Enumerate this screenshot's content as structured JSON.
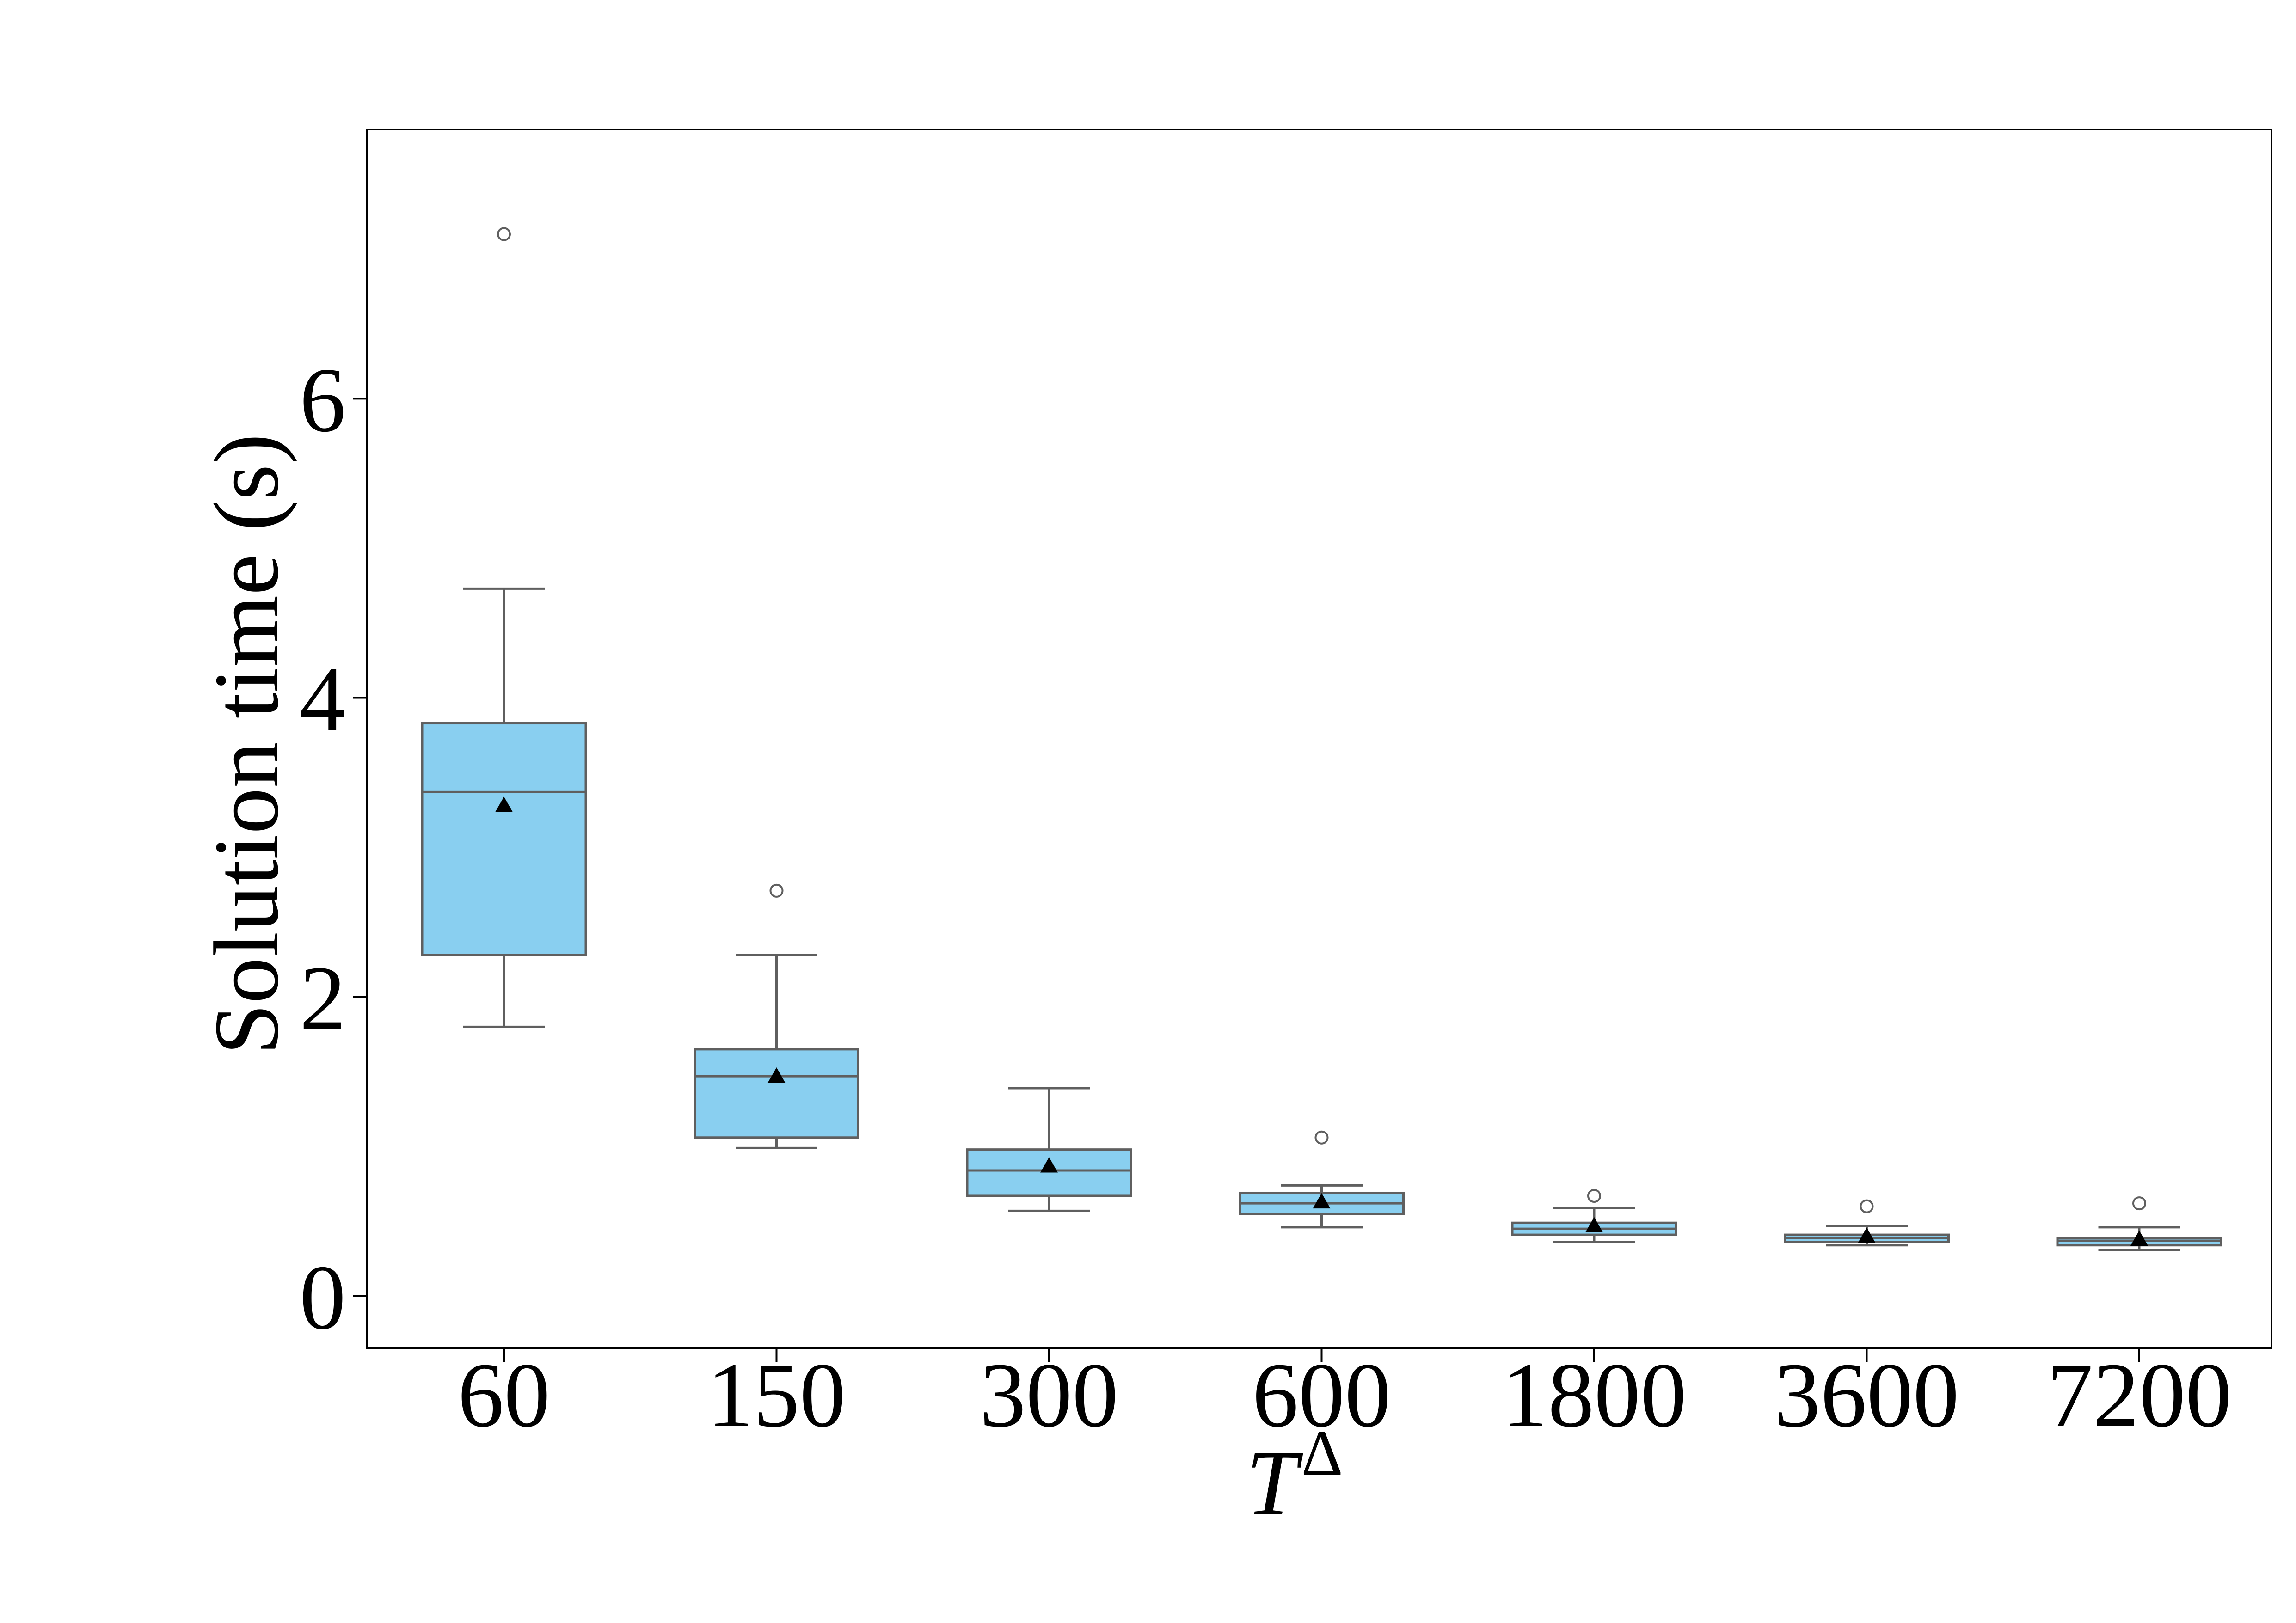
{
  "chart_data": {
    "type": "box",
    "xlabel": "T",
    "xlabel_superscript": "Δ",
    "ylabel": "Solution time (s)",
    "ylim": [
      -0.35,
      7.8
    ],
    "yticks": [
      "0",
      "2",
      "4",
      "6"
    ],
    "ytick_values": [
      0,
      2,
      4,
      6
    ],
    "grid": false,
    "box_color": "#89CFF0",
    "line_color": "#5f5f5f",
    "categories": [
      "60",
      "150",
      "300",
      "600",
      "1800",
      "3600",
      "7200"
    ],
    "boxes": [
      {
        "category": "60",
        "whisker_low": 1.8,
        "q1": 2.28,
        "median": 3.37,
        "q3": 3.83,
        "whisker_high": 4.73,
        "mean": 3.28,
        "outliers": [
          7.1
        ]
      },
      {
        "category": "150",
        "whisker_low": 0.99,
        "q1": 1.06,
        "median": 1.47,
        "q3": 1.65,
        "whisker_high": 2.28,
        "mean": 1.47,
        "outliers": [
          2.71
        ]
      },
      {
        "category": "300",
        "whisker_low": 0.57,
        "q1": 0.67,
        "median": 0.84,
        "q3": 0.98,
        "whisker_high": 1.39,
        "mean": 0.87,
        "outliers": []
      },
      {
        "category": "600",
        "whisker_low": 0.46,
        "q1": 0.55,
        "median": 0.62,
        "q3": 0.69,
        "whisker_high": 0.74,
        "mean": 0.63,
        "outliers": [
          1.06
        ]
      },
      {
        "category": "1800",
        "whisker_low": 0.36,
        "q1": 0.41,
        "median": 0.45,
        "q3": 0.49,
        "whisker_high": 0.59,
        "mean": 0.47,
        "outliers": [
          0.67
        ]
      },
      {
        "category": "3600",
        "whisker_low": 0.34,
        "q1": 0.36,
        "median": 0.39,
        "q3": 0.41,
        "whisker_high": 0.47,
        "mean": 0.4,
        "outliers": [
          0.6
        ]
      },
      {
        "category": "7200",
        "whisker_low": 0.31,
        "q1": 0.34,
        "median": 0.37,
        "q3": 0.39,
        "whisker_high": 0.46,
        "mean": 0.38,
        "outliers": [
          0.62
        ]
      }
    ]
  }
}
